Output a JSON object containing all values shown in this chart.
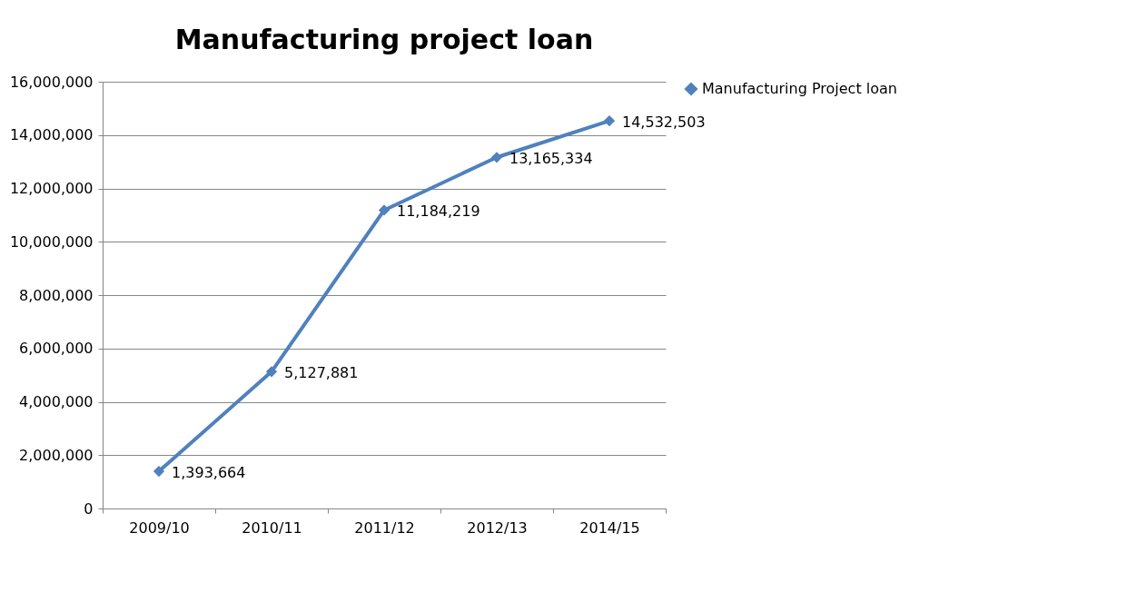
{
  "chart_data": {
    "type": "line",
    "title": "Manufacturing project loan",
    "categories": [
      "2009/10",
      "2010/11",
      "2011/12",
      "2012/13",
      "2014/15"
    ],
    "series": [
      {
        "name": "Manufacturing Project loan",
        "color": "#4f81bd",
        "values": [
          1393664,
          5127881,
          11184219,
          13165334,
          14532503
        ]
      }
    ],
    "ylim": [
      0,
      16000000
    ],
    "yticks": [
      {
        "value": 0,
        "label": "0"
      },
      {
        "value": 2000000,
        "label": "2,000,000"
      },
      {
        "value": 4000000,
        "label": "4,000,000"
      },
      {
        "value": 6000000,
        "label": "6,000,000"
      },
      {
        "value": 8000000,
        "label": "8,000,000"
      },
      {
        "value": 10000000,
        "label": "10,000,000"
      },
      {
        "value": 12000000,
        "label": "12,000,000"
      },
      {
        "value": 14000000,
        "label": "14,000,000"
      },
      {
        "value": 16000000,
        "label": "16,000,000"
      }
    ],
    "value_labels": [
      "1,393,664",
      "5,127,881",
      "11,184,219",
      "13,165,334",
      "14,532,503"
    ],
    "grid": "y",
    "legend": "right",
    "marker": "diamond",
    "line_style": "solid"
  }
}
